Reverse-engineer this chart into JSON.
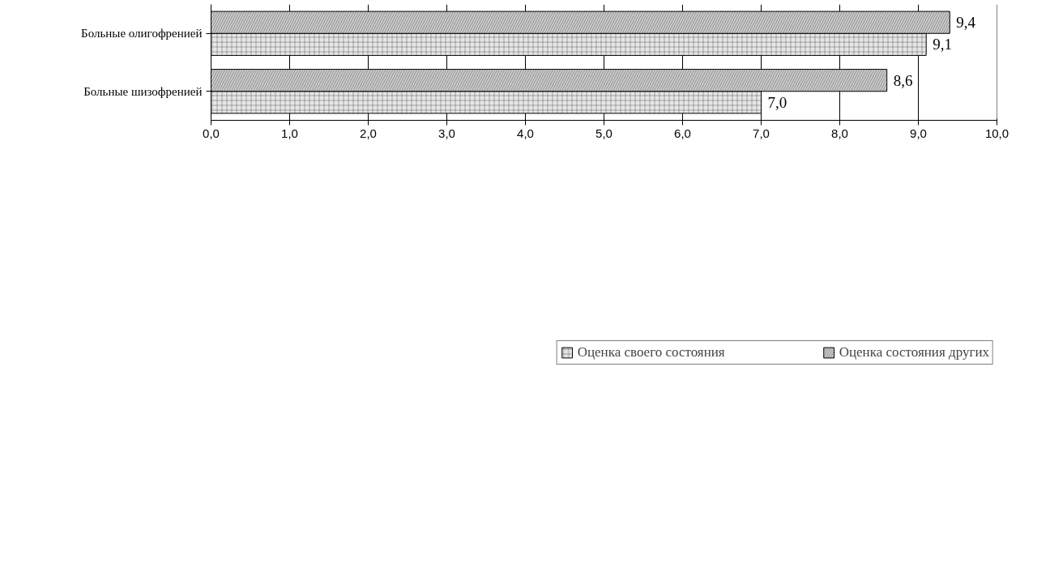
{
  "chart_data": {
    "type": "bar",
    "orientation": "horizontal",
    "categories": [
      "Больные олигофренией",
      "Больные шизофренией"
    ],
    "series": [
      {
        "name": "Оценка своего состояния",
        "color": "#e6e6e6",
        "values": [
          9.1,
          7.0
        ],
        "value_labels": [
          "9,1",
          "7,0"
        ]
      },
      {
        "name": "Оценка состояния других",
        "color": "#cccccc",
        "values": [
          9.4,
          8.6
        ],
        "value_labels": [
          "9,4",
          "8,6"
        ]
      }
    ],
    "xlim": [
      0,
      10
    ],
    "xticks": [
      {
        "value": 0,
        "label": "0,0"
      },
      {
        "value": 1,
        "label": "1,0"
      },
      {
        "value": 2,
        "label": "2,0"
      },
      {
        "value": 3,
        "label": "3,0"
      },
      {
        "value": 4,
        "label": "4,0"
      },
      {
        "value": 5,
        "label": "5,0"
      },
      {
        "value": 6,
        "label": "6,0"
      },
      {
        "value": 7,
        "label": "7,0"
      },
      {
        "value": 8,
        "label": "8,0"
      },
      {
        "value": 9,
        "label": "9,0"
      },
      {
        "value": 10,
        "label": "10,0"
      }
    ],
    "grid": "x",
    "legend": "bottom"
  }
}
